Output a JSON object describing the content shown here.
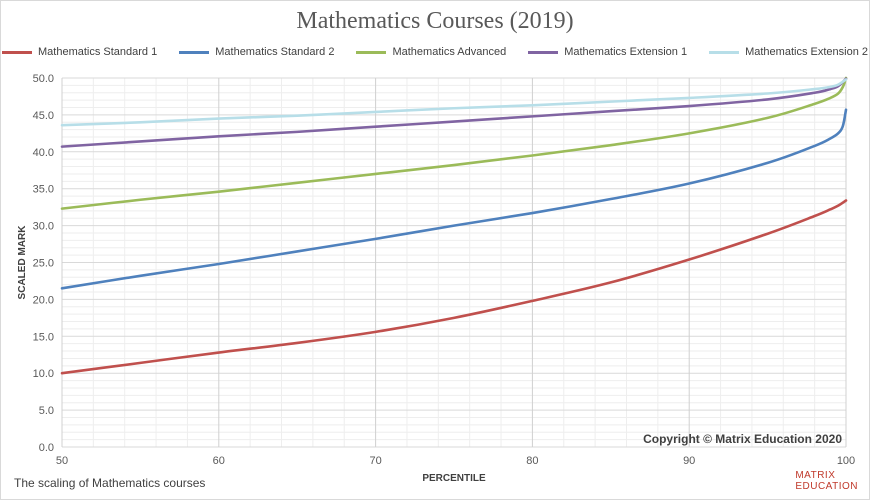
{
  "chart_data": {
    "type": "line",
    "title": "Mathematics Courses (2019)",
    "xlabel": "PERCENTILE",
    "ylabel": "SCALED MARK",
    "xlim": [
      50,
      100
    ],
    "ylim": [
      0,
      50
    ],
    "x_ticks": [
      "50",
      "60",
      "70",
      "80",
      "90",
      "100"
    ],
    "y_ticks": [
      "0.0",
      "5.0",
      "10.0",
      "15.0",
      "20.0",
      "25.0",
      "30.0",
      "35.0",
      "40.0",
      "45.0",
      "50.0"
    ],
    "grid": true,
    "legend_position": "top",
    "series": [
      {
        "name": "Mathematics Standard 1",
        "color": "#c0504d",
        "x": [
          50,
          55,
          60,
          65,
          70,
          75,
          80,
          85,
          90,
          95,
          98,
          99,
          99.5,
          100
        ],
        "y": [
          10.0,
          11.4,
          12.8,
          14.1,
          15.6,
          17.5,
          19.8,
          22.3,
          25.4,
          28.9,
          31.3,
          32.2,
          32.7,
          33.4
        ]
      },
      {
        "name": "Mathematics Standard 2",
        "color": "#4f81bd",
        "x": [
          50,
          55,
          60,
          65,
          70,
          75,
          80,
          85,
          90,
          95,
          98,
          99,
          99.5,
          99.8,
          100
        ],
        "y": [
          21.5,
          23.2,
          24.8,
          26.5,
          28.2,
          30.0,
          31.7,
          33.6,
          35.7,
          38.5,
          40.8,
          41.8,
          42.5,
          43.5,
          45.7
        ]
      },
      {
        "name": "Mathematics Advanced",
        "color": "#9bbb59",
        "x": [
          50,
          55,
          60,
          65,
          70,
          75,
          80,
          85,
          90,
          95,
          98,
          99,
          99.5,
          99.8,
          100
        ],
        "y": [
          32.3,
          33.5,
          34.6,
          35.8,
          37.0,
          38.2,
          39.5,
          40.9,
          42.5,
          44.6,
          46.5,
          47.3,
          47.9,
          48.8,
          50.0
        ]
      },
      {
        "name": "Mathematics Extension 1",
        "color": "#8064a2",
        "x": [
          50,
          55,
          60,
          65,
          70,
          75,
          80,
          85,
          90,
          95,
          98,
          99,
          99.5,
          100
        ],
        "y": [
          40.7,
          41.4,
          42.1,
          42.7,
          43.4,
          44.1,
          44.8,
          45.5,
          46.2,
          47.1,
          48.0,
          48.5,
          48.9,
          49.9
        ]
      },
      {
        "name": "Mathematics Extension 2",
        "color": "#b7dee8",
        "x": [
          50,
          55,
          60,
          65,
          70,
          75,
          80,
          85,
          90,
          95,
          98,
          99,
          99.5,
          100
        ],
        "y": [
          43.6,
          44.0,
          44.5,
          44.9,
          45.4,
          45.9,
          46.3,
          46.8,
          47.3,
          47.9,
          48.5,
          48.8,
          49.1,
          49.8
        ]
      }
    ]
  },
  "caption": "The scaling of Mathematics courses",
  "copyright": "Copyright © Matrix Education 2020",
  "logo": {
    "line1": "MATRIX",
    "line2": "EDUCATION"
  }
}
